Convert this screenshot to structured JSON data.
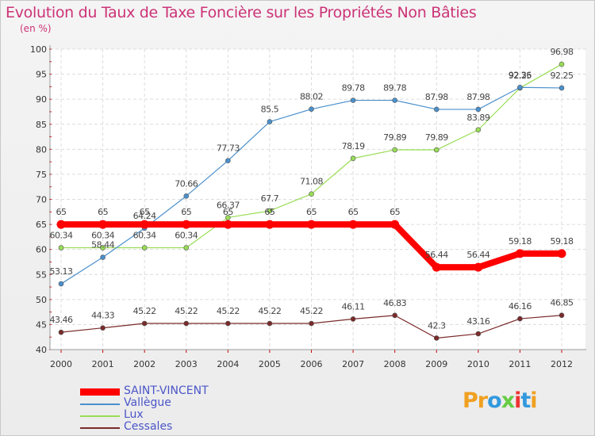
{
  "title": "Evolution du Taux de Taxe Foncière sur les Propriétés Non Bâties",
  "unit_label": "(en %)",
  "logo": {
    "letters": [
      "P",
      "r",
      "o",
      "x",
      "i",
      "t",
      "i"
    ],
    "colors": [
      "#f0a020",
      "#f0a020",
      "#3399dd",
      "#66cc44",
      "#ee3333",
      "#3399dd",
      "#f0a020"
    ]
  },
  "chart_data": {
    "type": "line",
    "x": [
      "2000",
      "2001",
      "2002",
      "2003",
      "2004",
      "2005",
      "2006",
      "2007",
      "2008",
      "2009",
      "2010",
      "2011",
      "2012"
    ],
    "ylim": [
      40,
      100
    ],
    "yticks": [
      "40",
      "45",
      "50",
      "55",
      "60",
      "65",
      "70",
      "75",
      "80",
      "85",
      "90",
      "95",
      "100"
    ],
    "grid": true,
    "legend_position": "bottom-left",
    "series": [
      {
        "name": "SAINT-VINCENT",
        "color": "#ff0000",
        "values": [
          65,
          65,
          65,
          65,
          65,
          65,
          65,
          65,
          65,
          56.44,
          56.44,
          59.18,
          59.18
        ],
        "labels": [
          "65",
          "65",
          "65",
          "65",
          "65",
          "65",
          "65",
          "65",
          "65",
          "56.44",
          "56.44",
          "59.18",
          "59.18"
        ]
      },
      {
        "name": "Vallègue",
        "color": "#4a90cc",
        "values": [
          53.13,
          58.44,
          64.24,
          70.66,
          77.73,
          85.5,
          88.02,
          89.78,
          89.78,
          87.98,
          87.98,
          92.36,
          92.25
        ],
        "labels": [
          "53.13",
          "58.44",
          "64.24",
          "70.66",
          "77.73",
          "85.5",
          "88.02",
          "89.78",
          "89.78",
          "87.98",
          "87.98",
          "92.36",
          "92.25"
        ]
      },
      {
        "name": "Lux",
        "color": "#99dd55",
        "values": [
          60.34,
          60.34,
          60.34,
          60.34,
          66.37,
          67.7,
          71.08,
          78.19,
          79.89,
          79.89,
          83.89,
          92.25,
          96.98
        ],
        "labels": [
          "60.34",
          "60.34",
          "60.34",
          "60.34",
          "66.37",
          "67.7",
          "71.08",
          "78.19",
          "79.89",
          "79.89",
          "83.89",
          "92.25",
          "96.98"
        ]
      },
      {
        "name": "Cessales",
        "color": "#7a2a2a",
        "values": [
          43.46,
          44.33,
          45.22,
          45.22,
          45.22,
          45.22,
          45.22,
          46.11,
          46.83,
          42.3,
          43.16,
          46.16,
          46.85
        ],
        "labels": [
          "43.46",
          "44.33",
          "45.22",
          "45.22",
          "45.22",
          "45.22",
          "45.22",
          "46.11",
          "46.83",
          "42.3",
          "43.16",
          "46.16",
          "46.85"
        ]
      }
    ]
  }
}
